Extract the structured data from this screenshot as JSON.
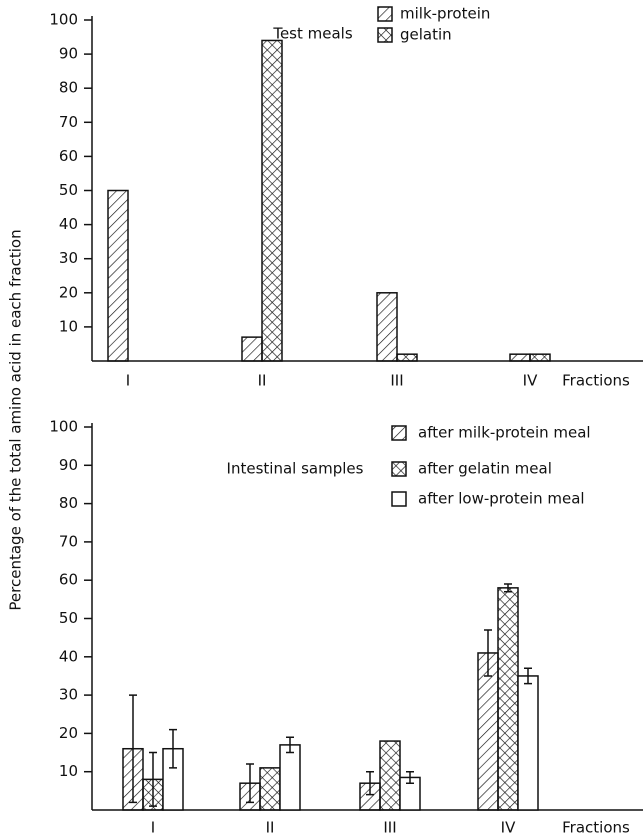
{
  "chart_data": [
    {
      "type": "bar",
      "ylabel": "Percentage of the total amino acid in each fraction",
      "xlabel": "Fractions",
      "legend_title": "Test meals",
      "categories": [
        "I",
        "II",
        "III",
        "IV"
      ],
      "series": [
        {
          "name": "milk-protein",
          "color": "#111111",
          "pattern": "hatch",
          "values": [
            50,
            7,
            20,
            2
          ]
        },
        {
          "name": "gelatin",
          "color": "#111111",
          "pattern": "crosshatch",
          "values": [
            null,
            94,
            2,
            2
          ]
        }
      ],
      "ylim": [
        0,
        100
      ],
      "yticks": [
        10,
        20,
        30,
        40,
        50,
        60,
        70,
        80,
        90,
        100
      ]
    },
    {
      "type": "bar",
      "xlabel": "Fractions",
      "legend_title": "Intestinal samples",
      "categories": [
        "I",
        "II",
        "III",
        "IV"
      ],
      "series": [
        {
          "name": "after milk-protein meal",
          "color": "#111111",
          "pattern": "hatch",
          "values": [
            16,
            7,
            7,
            41
          ],
          "errors": [
            14,
            5,
            3,
            6
          ]
        },
        {
          "name": "after gelatin meal",
          "color": "#111111",
          "pattern": "crosshatch",
          "values": [
            8,
            11,
            18,
            58
          ],
          "errors": [
            7,
            null,
            null,
            1
          ]
        },
        {
          "name": "after low-protein meal",
          "color": "#111111",
          "pattern": "none",
          "values": [
            16,
            17,
            8.5,
            35
          ],
          "errors": [
            5,
            2,
            1.5,
            2
          ]
        }
      ],
      "ylim": [
        0,
        100
      ],
      "yticks": [
        10,
        20,
        30,
        40,
        50,
        60,
        70,
        80,
        90,
        100
      ]
    }
  ]
}
